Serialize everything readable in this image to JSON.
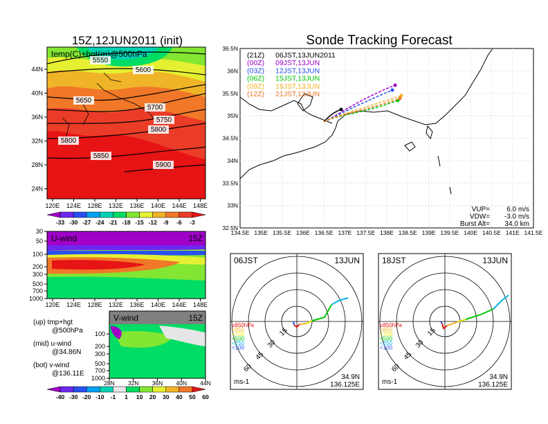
{
  "titles": {
    "left_title": "15Z,12JUN2011 (init)",
    "right_title": "Sonde Tracking Forecast"
  },
  "upper_map": {
    "label": "temp(C)+hgt(m)@500hPa",
    "x_ticks": [
      "120E",
      "124E",
      "128E",
      "132E",
      "136E",
      "140E",
      "144E",
      "148E"
    ],
    "y_ticks": [
      "44N",
      "40N",
      "36N",
      "32N",
      "28N",
      "24N"
    ],
    "contours": [
      {
        "value": "5550"
      },
      {
        "value": "5600"
      },
      {
        "value": "5650"
      },
      {
        "value": "5700"
      },
      {
        "value": "5750"
      },
      {
        "value": "5800"
      },
      {
        "value": "5800"
      },
      {
        "value": "5850"
      },
      {
        "value": "5900"
      }
    ],
    "colorbar": {
      "labels": [
        "-33",
        "-30",
        "-27",
        "-24",
        "-21",
        "-18",
        "-15",
        "-12",
        "-9",
        "-6",
        "-3"
      ],
      "colors": [
        "#a000c8",
        "#6e28f0",
        "#2850f0",
        "#00a0f0",
        "#00d2b4",
        "#00dc64",
        "#82e632",
        "#e6f032",
        "#f0b428",
        "#f07828",
        "#eb3c28",
        "#e61414"
      ]
    }
  },
  "uwind": {
    "label": "U-wind",
    "time": "15Z",
    "y_ticks": [
      "30",
      "50",
      "100",
      "200",
      "300",
      "500",
      "700",
      "1000"
    ],
    "x_ticks": [
      "120E",
      "124E",
      "128E",
      "132E",
      "136E",
      "140E",
      "144E",
      "148E"
    ]
  },
  "vwind": {
    "label": "V-wind",
    "time": "15Z",
    "y_ticks": [
      "100",
      "200",
      "300",
      "500",
      "700",
      "1000"
    ],
    "x_ticks": [
      "28N",
      "32N",
      "36N",
      "40N",
      "44N"
    ],
    "colorbar": {
      "labels": [
        "-40",
        "-30",
        "-20",
        "-10",
        "-1",
        "1",
        "10",
        "20",
        "30",
        "40",
        "50",
        "60"
      ],
      "colors": [
        "#a000c8",
        "#6e28f0",
        "#2850f0",
        "#00a0f0",
        "#00d2b4",
        "#e6e6e6",
        "#00dc64",
        "#82e632",
        "#e6f032",
        "#f0b428",
        "#f07828",
        "#e61414"
      ]
    }
  },
  "legend_notes": [
    {
      "line1": "(up) tmp+hgt",
      "line2": "@500hPa"
    },
    {
      "line1": "(mid) u-wind",
      "line2": "@34.86N"
    },
    {
      "line1": "(bot) v-wind",
      "line2": "@136.11E"
    }
  ],
  "tracking": {
    "x_ticks": [
      "134.5E",
      "135E",
      "135.5E",
      "136E",
      "136.5E",
      "137E",
      "137.5E",
      "138E",
      "138.5E",
      "139E",
      "139.5E",
      "140E",
      "140.5E",
      "141E",
      "141.5E"
    ],
    "y_ticks": [
      "36.5N",
      "36N",
      "35.5N",
      "35N",
      "34.5N",
      "34N",
      "33.5N",
      "33N",
      "32.5N"
    ],
    "runs": [
      {
        "code": "(21Z)",
        "label": "06JST,13JUN2011",
        "color": "#000000"
      },
      {
        "code": "(00Z)",
        "label": "09JST,13JUN",
        "color": "#a000c8"
      },
      {
        "code": "(03Z)",
        "label": "12JST,13JUN",
        "color": "#2850f0"
      },
      {
        "code": "(06Z)",
        "label": "15JST,13JUN",
        "color": "#00c800"
      },
      {
        "code": "(09Z)",
        "label": "18JST,13JUN",
        "color": "#f0b428"
      },
      {
        "code": "(12Z)",
        "label": "21JST,13JUN",
        "color": "#f07828"
      }
    ],
    "params": [
      {
        "label": "VUP=",
        "value": "6.0 m/s"
      },
      {
        "label": "VDW=",
        "value": "-3.0 m/s"
      },
      {
        "label": "Burst Alt=",
        "value": "34.0 km"
      }
    ]
  },
  "hodographs": [
    {
      "time": "06JST",
      "date": "13JUN",
      "lat": "34.9N",
      "lon": "136.125E",
      "unit": "ms-1"
    },
    {
      "time": "18JST",
      "date": "13JUN",
      "lat": "34.9N",
      "lon": "136.125E",
      "unit": "ms-1"
    }
  ],
  "hodo_rings": [
    "15",
    "30",
    "45",
    "60"
  ],
  "hodo_levels": [
    {
      "label": "≥850hPa",
      "color": "#e61414"
    },
    {
      "label": "<850",
      "color": "#f0b428"
    },
    {
      "label": "<700",
      "color": "#e6e600"
    },
    {
      "label": "<500",
      "color": "#00c800"
    },
    {
      "label": "<250",
      "color": "#00b4e6"
    },
    {
      "label": "<100",
      "color": "#2850f0"
    }
  ]
}
